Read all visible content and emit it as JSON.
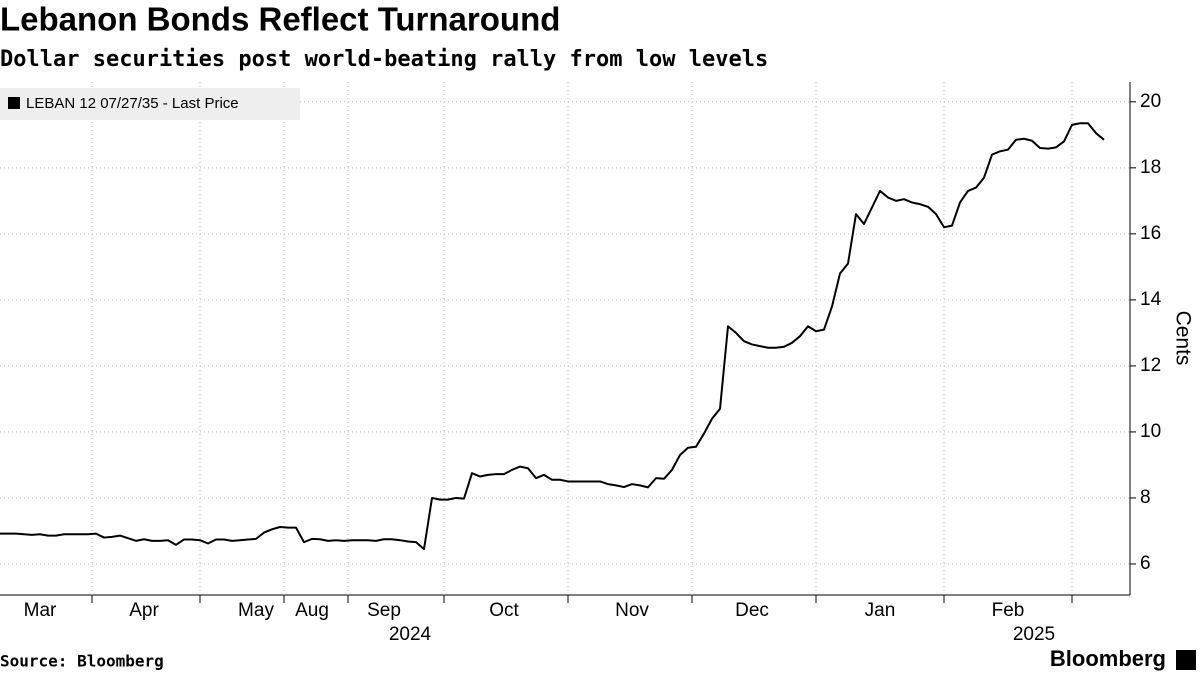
{
  "chart_data": {
    "type": "line",
    "title": "Lebanon Bonds Reflect Turnaround",
    "subtitle": "Dollar securities post world-beating rally from low levels",
    "y_label": "Cents",
    "source": "Source: Bloomberg",
    "brand": "Bloomberg",
    "categories": [
      null,
      null,
      null,
      null,
      null,
      "Mar",
      null,
      null,
      null,
      null,
      null,
      null,
      null,
      null,
      null,
      null,
      null,
      null,
      "Apr",
      null,
      null,
      null,
      null,
      null,
      null,
      null,
      null,
      null,
      null,
      null,
      null,
      null,
      "May",
      null,
      null,
      null,
      null,
      null,
      null,
      "Aug",
      null,
      null,
      null,
      null,
      null,
      null,
      null,
      null,
      "Sep",
      null,
      null,
      null,
      null,
      null,
      null,
      null,
      null,
      null,
      null,
      null,
      null,
      null,
      null,
      "Oct",
      null,
      null,
      null,
      null,
      null,
      null,
      null,
      null,
      null,
      null,
      null,
      null,
      null,
      null,
      null,
      "Nov",
      null,
      null,
      null,
      null,
      null,
      null,
      null,
      null,
      null,
      null,
      null,
      null,
      null,
      null,
      "Dec",
      null,
      null,
      null,
      null,
      null,
      null,
      null,
      null,
      null,
      null,
      null,
      null,
      null,
      null,
      null,
      "Jan",
      null,
      null,
      null,
      null,
      null,
      null,
      null,
      null,
      null,
      null,
      null,
      null,
      null,
      null,
      null,
      "Feb",
      null,
      null,
      null,
      null,
      null,
      null,
      null,
      null,
      null,
      null,
      null,
      null
    ],
    "year_labels": [
      {
        "label": "2024",
        "under": "Sep"
      },
      {
        "label": "2025",
        "under": "Feb"
      }
    ],
    "series": [
      {
        "name": "LEBAN 12 07/27/35 - Last Price",
        "color": "#000000",
        "values": [
          6.92,
          6.92,
          6.92,
          6.9,
          6.88,
          6.9,
          6.86,
          6.86,
          6.9,
          6.9,
          6.9,
          6.9,
          6.92,
          6.8,
          6.82,
          6.86,
          6.78,
          6.7,
          6.75,
          6.7,
          6.7,
          6.72,
          6.58,
          6.74,
          6.74,
          6.72,
          6.62,
          6.74,
          6.74,
          6.7,
          6.72,
          6.74,
          6.76,
          6.95,
          7.05,
          7.12,
          7.1,
          7.1,
          6.66,
          6.76,
          6.75,
          6.7,
          6.72,
          6.7,
          6.72,
          6.72,
          6.72,
          6.7,
          6.75,
          6.75,
          6.72,
          6.68,
          6.66,
          6.45,
          8.0,
          7.95,
          7.95,
          8.0,
          7.98,
          8.75,
          8.65,
          8.7,
          8.72,
          8.72,
          8.85,
          8.95,
          8.9,
          8.6,
          8.7,
          8.55,
          8.55,
          8.5,
          8.5,
          8.5,
          8.5,
          8.5,
          8.42,
          8.38,
          8.33,
          8.42,
          8.38,
          8.32,
          8.6,
          8.58,
          8.85,
          9.3,
          9.52,
          9.55,
          9.95,
          10.4,
          10.7,
          13.2,
          13.0,
          12.75,
          12.65,
          12.6,
          12.55,
          12.55,
          12.58,
          12.7,
          12.9,
          13.2,
          13.05,
          13.1,
          13.8,
          14.8,
          15.1,
          16.6,
          16.3,
          16.8,
          17.3,
          17.1,
          17.0,
          17.05,
          16.95,
          16.9,
          16.82,
          16.6,
          16.2,
          16.25,
          16.95,
          17.3,
          17.4,
          17.7,
          18.4,
          18.5,
          18.55,
          18.85,
          18.88,
          18.82,
          18.6,
          18.58,
          18.62,
          18.8,
          19.3,
          19.35,
          19.35,
          19.05,
          18.85
        ]
      }
    ],
    "ylim": [
      5.06,
      20.6
    ],
    "yticks": [
      6,
      8,
      10,
      12,
      14,
      16,
      18,
      20
    ],
    "y_axis_side": "right",
    "grid": true,
    "legend": "top-left"
  }
}
